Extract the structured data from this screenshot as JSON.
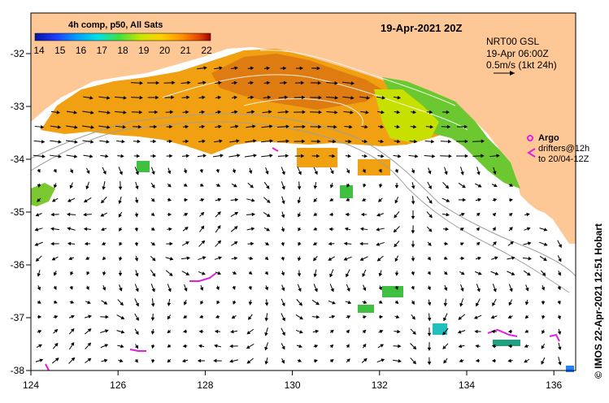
{
  "title": "19-Apr-2021 20Z",
  "colorbar": {
    "label": "4h comp, p50, All Sats",
    "ticks": [
      "14",
      "15",
      "16",
      "17",
      "18",
      "19",
      "20",
      "21",
      "22"
    ],
    "colors": [
      "#0a14a0",
      "#1e3cff",
      "#00a0ff",
      "#00e0e0",
      "#40e040",
      "#c8e600",
      "#ffd000",
      "#ff9000",
      "#e04000",
      "#a00000"
    ]
  },
  "current_info": {
    "line1": "NRT00 GSL",
    "line2": "19-Apr 06:00Z",
    "line3": "0.5m/s (1kt 24h)"
  },
  "argo": {
    "label": "Argo",
    "drifters_line1": "drifters@12h",
    "drifters_line2": "to 20/04-12Z",
    "color": "#e020e0"
  },
  "credit": "© IMOS 22-Apr-2021 12:51 Hobart",
  "axes": {
    "lon_ticks": [
      "124",
      "126",
      "128",
      "130",
      "132",
      "134",
      "136"
    ],
    "lat_ticks": [
      "-32",
      "-33",
      "-34",
      "-35",
      "-36",
      "-37",
      "-38"
    ]
  },
  "colors": {
    "land": "#fdc896",
    "ocean": "#ffffff",
    "warm_sst": "#f0a010",
    "hot_sst": "#e08010",
    "cool_sst": "#60c030"
  }
}
